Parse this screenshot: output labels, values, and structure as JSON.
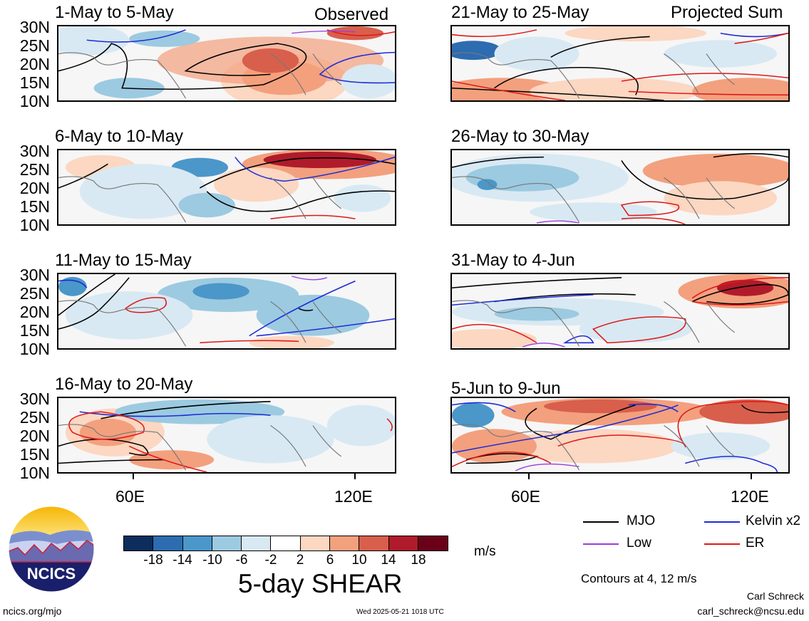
{
  "header": {
    "observed_label": "Observed",
    "projected_label": "Projected Sum"
  },
  "panels_left": [
    {
      "title": "1-May to 5-May"
    },
    {
      "title": "6-May to 10-May"
    },
    {
      "title": "11-May to 15-May"
    },
    {
      "title": "16-May to 20-May"
    }
  ],
  "panels_right": [
    {
      "title": "21-May to 25-May"
    },
    {
      "title": "26-May to 30-May"
    },
    {
      "title": "31-May to 4-Jun"
    },
    {
      "title": "5-Jun to 9-Jun"
    }
  ],
  "lat_labels": [
    "30N",
    "25N",
    "20N",
    "15N",
    "10N"
  ],
  "lon_labels": {
    "left": [
      "60E",
      "120E"
    ],
    "right": [
      "60E",
      "120E"
    ]
  },
  "colorbar": {
    "title": "5-day SHEAR",
    "units": "m/s",
    "tick_labels": [
      "-18",
      "-14",
      "-10",
      "-6",
      "-2",
      "2",
      "6",
      "10",
      "14",
      "18"
    ],
    "colors": [
      "#0d2d5c",
      "#2d6cb0",
      "#4b97c9",
      "#9ccae1",
      "#d8e9f3",
      "#ffffff",
      "#fcd7c2",
      "#f3a07e",
      "#d85f4c",
      "#b01b2b",
      "#6b0019"
    ]
  },
  "legend": {
    "mjo": "MJO",
    "kelvin": "Kelvin x2",
    "low": "Low",
    "er": "ER",
    "contours_note": "Contours at 4, 12 m/s",
    "colors": {
      "mjo": "#000000",
      "kelvin": "#1c2bd8",
      "low": "#9b3be0",
      "er": "#e01818"
    }
  },
  "footer": {
    "logo_text": "NCICS",
    "site": "ncics.org/mjo",
    "timestamp": "Wed 2025-05-21 1018 UTC",
    "author": "Carl Schreck",
    "email": "carl_schreck@ncsu.edu"
  }
}
